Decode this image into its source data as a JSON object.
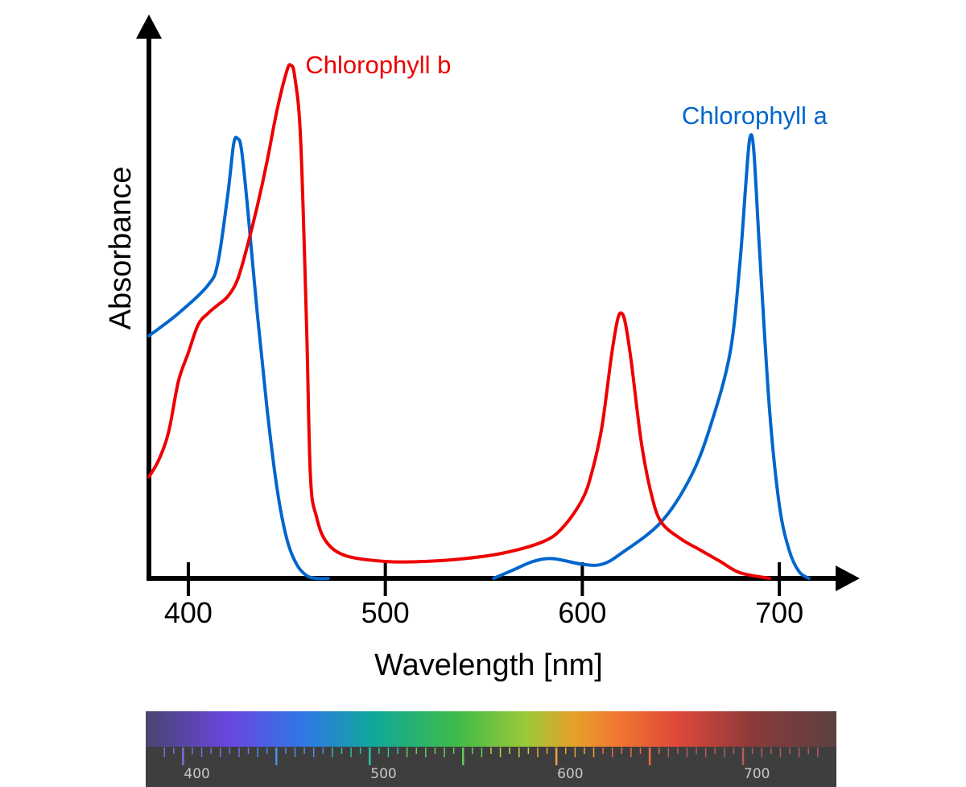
{
  "chart_data": {
    "type": "line",
    "xlabel": "Wavelength [nm]",
    "ylabel": "Absorbance",
    "xlim": [
      380,
      740
    ],
    "ylim": [
      0,
      1.0
    ],
    "x_ticks": [
      400,
      500,
      600,
      700
    ],
    "x_tick_labels": [
      "400",
      "500",
      "600",
      "700"
    ],
    "grid": false,
    "series": [
      {
        "name": "Chlorophyll a",
        "color": "#0066cc",
        "points": [
          [
            380,
            0.43
          ],
          [
            395,
            0.47
          ],
          [
            410,
            0.52
          ],
          [
            415,
            0.56
          ],
          [
            420,
            0.68
          ],
          [
            423,
            0.77
          ],
          [
            425,
            0.78
          ],
          [
            427,
            0.76
          ],
          [
            430,
            0.66
          ],
          [
            435,
            0.47
          ],
          [
            440,
            0.3
          ],
          [
            445,
            0.16
          ],
          [
            450,
            0.07
          ],
          [
            455,
            0.025
          ],
          [
            460,
            0.005
          ],
          [
            465,
            0.0
          ],
          [
            471,
            0.0
          ],
          null,
          [
            555,
            0.0
          ],
          [
            565,
            0.015
          ],
          [
            575,
            0.03
          ],
          [
            585,
            0.035
          ],
          [
            600,
            0.025
          ],
          [
            610,
            0.025
          ],
          [
            620,
            0.045
          ],
          [
            640,
            0.1
          ],
          [
            655,
            0.18
          ],
          [
            665,
            0.27
          ],
          [
            675,
            0.4
          ],
          [
            680,
            0.56
          ],
          [
            683,
            0.7
          ],
          [
            685,
            0.78
          ],
          [
            687,
            0.76
          ],
          [
            690,
            0.58
          ],
          [
            695,
            0.3
          ],
          [
            700,
            0.13
          ],
          [
            705,
            0.05
          ],
          [
            710,
            0.012
          ],
          [
            715,
            0.0
          ]
        ]
      },
      {
        "name": "Chlorophyll b",
        "color": "#ee0000",
        "points": [
          [
            380,
            0.18
          ],
          [
            385,
            0.21
          ],
          [
            390,
            0.26
          ],
          [
            395,
            0.35
          ],
          [
            400,
            0.4
          ],
          [
            405,
            0.45
          ],
          [
            410,
            0.47
          ],
          [
            415,
            0.485
          ],
          [
            420,
            0.5
          ],
          [
            425,
            0.53
          ],
          [
            430,
            0.59
          ],
          [
            435,
            0.66
          ],
          [
            440,
            0.74
          ],
          [
            445,
            0.83
          ],
          [
            450,
            0.9
          ],
          [
            452,
            0.91
          ],
          [
            454,
            0.89
          ],
          [
            457,
            0.78
          ],
          [
            460,
            0.45
          ],
          [
            462,
            0.18
          ],
          [
            465,
            0.11
          ],
          [
            470,
            0.065
          ],
          [
            480,
            0.04
          ],
          [
            500,
            0.03
          ],
          [
            520,
            0.03
          ],
          [
            540,
            0.035
          ],
          [
            560,
            0.045
          ],
          [
            580,
            0.065
          ],
          [
            590,
            0.09
          ],
          [
            600,
            0.14
          ],
          [
            605,
            0.19
          ],
          [
            610,
            0.27
          ],
          [
            615,
            0.4
          ],
          [
            618,
            0.46
          ],
          [
            620,
            0.47
          ],
          [
            622,
            0.45
          ],
          [
            625,
            0.38
          ],
          [
            630,
            0.24
          ],
          [
            635,
            0.15
          ],
          [
            640,
            0.1
          ],
          [
            650,
            0.07
          ],
          [
            660,
            0.05
          ],
          [
            670,
            0.03
          ],
          [
            680,
            0.01
          ],
          [
            695,
            0.0
          ]
        ]
      }
    ],
    "annotations": [
      {
        "text": "Chlorophyll b",
        "x": 457,
        "y": 0.91,
        "color": "#ee0000"
      },
      {
        "text": "Chlorophyll a",
        "x": 648,
        "y": 0.82,
        "color": "#0066cc"
      }
    ]
  },
  "spectrum": {
    "range": [
      380,
      750
    ],
    "labels": [
      "400",
      "500",
      "600",
      "700"
    ],
    "label_values": [
      400,
      500,
      600,
      700
    ]
  }
}
